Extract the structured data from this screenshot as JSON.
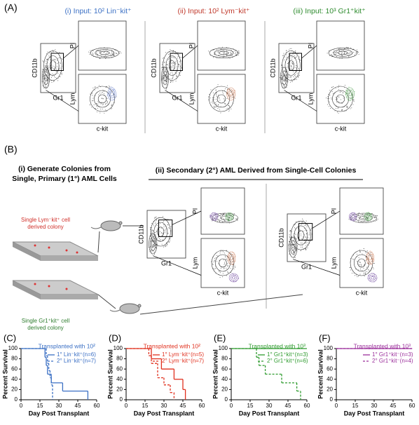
{
  "panel_a": {
    "label": "(A)",
    "titles": [
      {
        "text": "(i) Input: 10² Lin⁻kit⁺",
        "color": "#3a6fc4"
      },
      {
        "text": "(ii) Input: 10² Lym⁻kit⁺",
        "color": "#c0392b"
      },
      {
        "text": "(iii) Input: 10³ Gr1⁺kit⁺",
        "color": "#2e8b2e"
      }
    ]
  },
  "panel_b": {
    "label": "(B)",
    "step_i": [
      "(i) Generate Colonies from",
      "Single, Primary (1°) AML Cells"
    ],
    "step_ii": "(ii) Secondary (2°) AML Derived from Single-Cell Colonies",
    "colony_lym": [
      "Single Lym⁻kit⁺ cell",
      "derived colony"
    ],
    "colony_gr1": [
      "Single Gr1⁺kit⁺ cell",
      "derived colony"
    ]
  },
  "flow_plots": [
    {
      "y_main": "CD11b",
      "x_main": "Gr1",
      "y_top": "PI",
      "y_bottom": "Lym",
      "x_bottom": "c-kit"
    },
    {
      "y_main": "CD11b",
      "x_main": "Gr1",
      "y_top": "PI",
      "y_bottom": "Lym",
      "x_bottom": "c-kit"
    },
    {
      "y_main": "CD11b",
      "x_main": "Gr1",
      "y_top": "PI",
      "y_bottom": "Lym",
      "x_bottom": "c-kit"
    },
    {
      "y_main": "CD11b",
      "x_main": "Gr1",
      "y_top": "PI",
      "y_bottom": "Lym",
      "x_bottom": "c-kit"
    },
    {
      "y_main": "CD11b",
      "x_main": "Gr1",
      "y_top": "PI",
      "y_bottom": "Lym",
      "x_bottom": "c-kit"
    }
  ],
  "chart_data": [
    {
      "type": "step",
      "label": "(C)",
      "title": "Transplanted with 10²",
      "x_label": "Day Post Transplant",
      "y_label": "Percent Survival",
      "xlim": [
        0,
        60
      ],
      "ylim": [
        0,
        100
      ],
      "xticks": [
        0,
        15,
        30,
        45,
        60
      ],
      "yticks": [
        0,
        20,
        40,
        60,
        80,
        100
      ],
      "series": [
        {
          "name": "1° Lin⁻kit⁺(n=6)",
          "color": "#3a6fc4",
          "dash": false,
          "x": [
            0,
            19,
            20,
            21,
            24,
            33,
            53
          ],
          "values": [
            100,
            83,
            67,
            50,
            33,
            17,
            0
          ]
        },
        {
          "name": "2° Lin⁻kit⁺(n=7)",
          "color": "#3a6fc4",
          "dash": true,
          "x": [
            0,
            20,
            21,
            22,
            23,
            24,
            25
          ],
          "values": [
            100,
            86,
            71,
            57,
            43,
            29,
            0
          ]
        }
      ]
    },
    {
      "type": "step",
      "label": "(D)",
      "title": "Transplanted with 10²",
      "x_label": "Day Post Transplant",
      "y_label": "Percent Survival",
      "xlim": [
        0,
        60
      ],
      "ylim": [
        0,
        100
      ],
      "xticks": [
        0,
        15,
        30,
        45,
        60
      ],
      "yticks": [
        0,
        20,
        40,
        60,
        80,
        100
      ],
      "series": [
        {
          "name": "1° Lym⁻kit⁺(n=5)",
          "color": "#e0301e",
          "dash": false,
          "x": [
            0,
            20,
            28,
            38,
            45,
            47
          ],
          "values": [
            100,
            80,
            60,
            40,
            20,
            0
          ]
        },
        {
          "name": "2° Lym⁻kit⁺(n=7)",
          "color": "#e0301e",
          "dash": true,
          "x": [
            0,
            18,
            20,
            25,
            30,
            35,
            38
          ],
          "values": [
            100,
            86,
            71,
            43,
            29,
            14,
            0
          ]
        }
      ]
    },
    {
      "type": "step",
      "label": "(E)",
      "title": "Transplanted with 10³",
      "x_label": "Day Post Transplant",
      "y_label": "Percent Survival",
      "xlim": [
        0,
        60
      ],
      "ylim": [
        0,
        100
      ],
      "xticks": [
        0,
        15,
        30,
        45,
        60
      ],
      "yticks": [
        0,
        20,
        40,
        60,
        80,
        100
      ],
      "series": [
        {
          "name": "1° Gr1⁺kit⁺(n=3)",
          "color": "#2e9b2e",
          "dash": false,
          "x": [
            0,
            60
          ],
          "values": [
            100,
            100
          ]
        },
        {
          "name": "2° Gr1⁺kit⁺(n=6)",
          "color": "#2e9b2e",
          "dash": true,
          "x": [
            0,
            20,
            22,
            27,
            40,
            52,
            55
          ],
          "values": [
            100,
            83,
            67,
            50,
            33,
            17,
            0
          ]
        }
      ]
    },
    {
      "type": "step",
      "label": "(F)",
      "title": "Transplanted with 10³",
      "x_label": "Day Post Transplant",
      "y_label": "Percent Survival",
      "xlim": [
        0,
        60
      ],
      "ylim": [
        0,
        100
      ],
      "xticks": [
        0,
        15,
        30,
        45,
        60
      ],
      "yticks": [
        0,
        20,
        40,
        60,
        80,
        100
      ],
      "series": [
        {
          "name": "1° Gr1⁺kit⁻(n=3)",
          "color": "#9b2f9b",
          "dash": false,
          "x": [
            0,
            60
          ],
          "values": [
            100,
            100
          ]
        },
        {
          "name": "2° Gr1⁺kit⁻(n=4)",
          "color": "#9b2f9b",
          "dash": true,
          "x": [
            0,
            60
          ],
          "values": [
            100,
            100
          ]
        }
      ]
    }
  ]
}
